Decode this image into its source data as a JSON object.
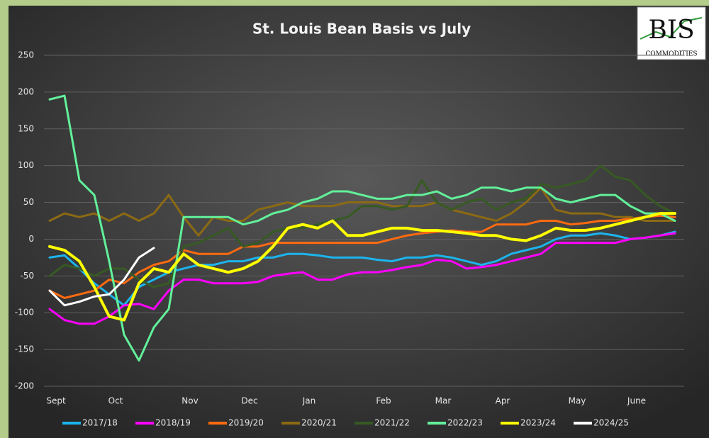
{
  "chart_data": {
    "type": "line",
    "title": "St. Louis Bean Basis vs July",
    "logo": {
      "name": "BIS",
      "subtitle": "COMMODITIES"
    },
    "categories": [
      "Sept",
      null,
      null,
      null,
      "Oct",
      null,
      null,
      null,
      null,
      "Nov",
      null,
      null,
      null,
      "Dec",
      null,
      null,
      null,
      "Jan",
      null,
      null,
      null,
      null,
      "Feb",
      null,
      null,
      null,
      "Mar",
      null,
      null,
      null,
      "Apr",
      null,
      null,
      null,
      null,
      "May",
      null,
      null,
      null,
      "June",
      null,
      null,
      null
    ],
    "ylim": [
      -200,
      250
    ],
    "yticks": [
      -200,
      -150,
      -100,
      -50,
      0,
      50,
      100,
      150,
      200,
      250
    ],
    "grid": true,
    "legend": "bottom",
    "series": [
      {
        "name": "2017/18",
        "color": "#1cb4ec",
        "values": [
          -25,
          -22,
          -40,
          -60,
          -75,
          -90,
          -65,
          -55,
          -45,
          -40,
          -35,
          -35,
          -30,
          -30,
          -25,
          -25,
          -20,
          -20,
          -22,
          -25,
          -25,
          -25,
          -28,
          -30,
          -25,
          -25,
          -22,
          -25,
          -30,
          -35,
          -30,
          -20,
          -15,
          -10,
          0,
          5,
          5,
          8,
          5,
          0,
          2,
          5,
          10
        ]
      },
      {
        "name": "2018/19",
        "color": "#ff00ff",
        "values": [
          -95,
          -110,
          -115,
          -115,
          -105,
          -90,
          -88,
          -95,
          -70,
          -55,
          -55,
          -60,
          -60,
          -60,
          -58,
          -50,
          -47,
          -45,
          -55,
          -55,
          -48,
          -45,
          -45,
          -42,
          -38,
          -35,
          -28,
          -30,
          -40,
          -38,
          -35,
          -30,
          -25,
          -20,
          -5,
          -5,
          -5,
          -5,
          -5,
          0,
          2,
          5,
          8
        ]
      },
      {
        "name": "2019/20",
        "color": "#ff6a10",
        "values": [
          -70,
          -80,
          -75,
          -70,
          -55,
          -60,
          -45,
          -35,
          -30,
          -15,
          -20,
          -20,
          -20,
          -10,
          -10,
          -5,
          -5,
          -5,
          -5,
          -5,
          -5,
          -5,
          -5,
          0,
          5,
          8,
          10,
          12,
          10,
          10,
          20,
          20,
          20,
          25,
          25,
          20,
          22,
          25,
          25,
          28,
          30,
          32,
          30
        ]
      },
      {
        "name": "2020/21",
        "color": "#8c6a14",
        "values": [
          25,
          35,
          30,
          35,
          25,
          35,
          25,
          35,
          60,
          30,
          5,
          30,
          25,
          25,
          40,
          45,
          50,
          45,
          45,
          45,
          50,
          50,
          50,
          45,
          45,
          45,
          50,
          40,
          35,
          30,
          25,
          35,
          50,
          70,
          40,
          35,
          35,
          35,
          30,
          30,
          25,
          25,
          25
        ]
      },
      {
        "name": "2021/22",
        "color": "#375a23",
        "values": [
          -50,
          -35,
          -40,
          -50,
          -40,
          -40,
          -55,
          -65,
          -60,
          -10,
          -5,
          5,
          15,
          -10,
          -5,
          10,
          15,
          15,
          20,
          25,
          30,
          45,
          45,
          40,
          45,
          80,
          50,
          40,
          50,
          55,
          40,
          50,
          55,
          75,
          70,
          75,
          80,
          100,
          85,
          80,
          60,
          45,
          35
        ]
      },
      {
        "name": "2022/23",
        "color": "#62f09a",
        "values": [
          190,
          195,
          80,
          60,
          -30,
          -130,
          -165,
          -120,
          -95,
          30,
          30,
          30,
          30,
          20,
          25,
          35,
          40,
          50,
          55,
          65,
          65,
          60,
          55,
          55,
          60,
          60,
          65,
          55,
          60,
          70,
          70,
          65,
          70,
          70,
          55,
          50,
          55,
          60,
          60,
          45,
          35,
          35,
          25
        ]
      },
      {
        "name": "2023/24",
        "color": "#ffff00",
        "values": [
          -10,
          -15,
          -30,
          -65,
          -105,
          -110,
          -60,
          -40,
          -45,
          -20,
          -35,
          -40,
          -45,
          -40,
          -30,
          -10,
          15,
          20,
          15,
          25,
          5,
          5,
          10,
          15,
          15,
          12,
          12,
          10,
          8,
          5,
          5,
          0,
          -2,
          5,
          15,
          12,
          12,
          15,
          20,
          25,
          30,
          35,
          35
        ]
      },
      {
        "name": "2024/25",
        "color": "#ffffff",
        "values": [
          -70,
          -90,
          -85,
          -78,
          -75,
          -55,
          -25,
          -12,
          null,
          null,
          null,
          null,
          null,
          null,
          null,
          null,
          null,
          null,
          null,
          null,
          null,
          null,
          null,
          null,
          null,
          null,
          null,
          null,
          null,
          null,
          null,
          null,
          null,
          null,
          null,
          null,
          null,
          null,
          null,
          null,
          null,
          null,
          null
        ]
      }
    ]
  }
}
